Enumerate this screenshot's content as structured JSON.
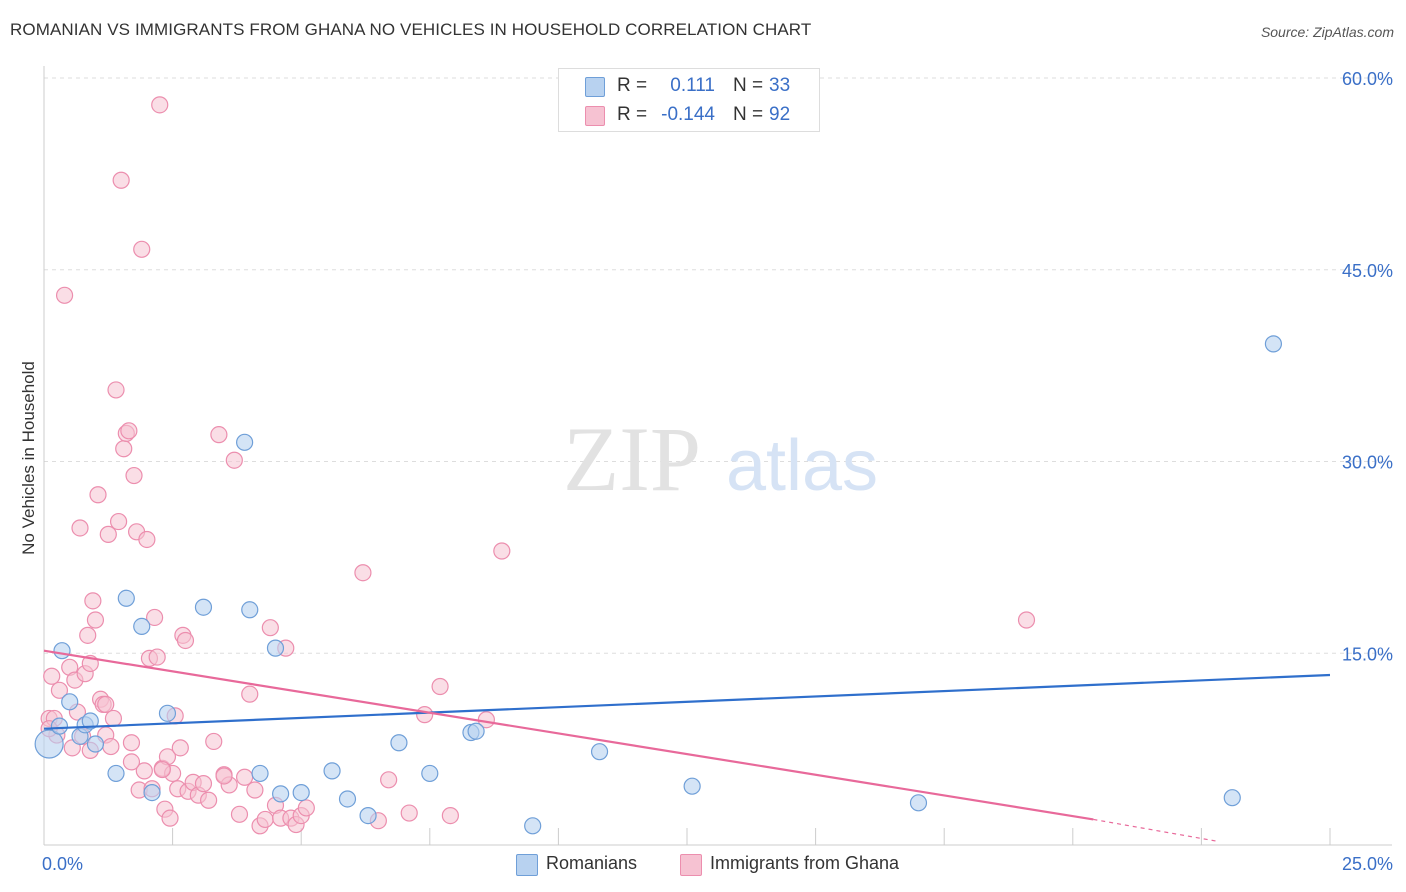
{
  "header": {
    "title": "ROMANIAN VS IMMIGRANTS FROM GHANA NO VEHICLES IN HOUSEHOLD CORRELATION CHART",
    "source": "Source: ZipAtlas.com"
  },
  "watermark": {
    "zip": "ZIP",
    "atlas": "atlas"
  },
  "colors": {
    "blue_fill": "#b8d2f0",
    "blue_stroke": "#6f9fd8",
    "blue_line": "#2f6fcc",
    "pink_fill": "#f6c2d2",
    "pink_stroke": "#ec8eae",
    "pink_line": "#e8699a",
    "axis_label": "#3a6fc7",
    "grid": "#dddddd"
  },
  "legend": {
    "rows": [
      {
        "r_label": "R =",
        "r_value": "0.111",
        "n_label": "N =",
        "n_value": "33"
      },
      {
        "r_label": "R =",
        "r_value": "-0.144",
        "n_label": "N =",
        "n_value": "92"
      }
    ]
  },
  "bottom_legend": {
    "series_a": "Romanians",
    "series_b": "Immigrants from Ghana"
  },
  "chart_data": {
    "type": "scatter",
    "title": "ROMANIAN VS IMMIGRANTS FROM GHANA NO VEHICLES IN HOUSEHOLD CORRELATION CHART",
    "xlabel": "",
    "ylabel": "No Vehicles in Household",
    "xlim": [
      0,
      25
    ],
    "ylim": [
      0,
      60
    ],
    "x_tick_labels": [
      {
        "value": 0,
        "label": "0.0%"
      },
      {
        "value": 25,
        "label": "25.0%"
      }
    ],
    "y_ticks": [
      {
        "value": 15,
        "label": "15.0%"
      },
      {
        "value": 30,
        "label": "30.0%"
      },
      {
        "value": 45,
        "label": "45.0%"
      },
      {
        "value": 60,
        "label": "60.0%"
      }
    ],
    "series": [
      {
        "name": "Romanians",
        "color": "blue",
        "trend": {
          "x0": 0,
          "y0": 9.1,
          "x1": 25,
          "y1": 13.3
        },
        "points": [
          [
            0.1,
            7.9
          ],
          [
            0.35,
            15.2
          ],
          [
            0.3,
            9.3
          ],
          [
            0.5,
            11.2
          ],
          [
            0.7,
            8.5
          ],
          [
            0.8,
            9.4
          ],
          [
            0.9,
            9.7
          ],
          [
            1.0,
            7.9
          ],
          [
            1.4,
            5.6
          ],
          [
            1.6,
            19.3
          ],
          [
            1.9,
            17.1
          ],
          [
            2.1,
            4.1
          ],
          [
            2.4,
            10.3
          ],
          [
            3.1,
            18.6
          ],
          [
            3.9,
            31.5
          ],
          [
            4.0,
            18.4
          ],
          [
            4.5,
            15.4
          ],
          [
            4.2,
            5.6
          ],
          [
            4.6,
            4.0
          ],
          [
            5.0,
            4.1
          ],
          [
            5.6,
            5.8
          ],
          [
            5.9,
            3.6
          ],
          [
            6.3,
            2.3
          ],
          [
            6.9,
            8.0
          ],
          [
            7.5,
            5.6
          ],
          [
            8.3,
            8.8
          ],
          [
            8.4,
            8.9
          ],
          [
            9.5,
            1.5
          ],
          [
            10.8,
            7.3
          ],
          [
            12.6,
            4.6
          ],
          [
            17.0,
            3.3
          ],
          [
            23.1,
            3.7
          ],
          [
            23.9,
            39.2
          ]
        ]
      },
      {
        "name": "Immigrants from Ghana",
        "color": "pink",
        "trend": {
          "x0": 0,
          "y0": 15.2,
          "x1": 20.4,
          "y1": 2.0,
          "dash_x1": 22.8,
          "dash_y1": 0.3
        },
        "points": [
          [
            0.1,
            9.9
          ],
          [
            0.15,
            13.2
          ],
          [
            0.2,
            9.9
          ],
          [
            0.25,
            8.6
          ],
          [
            0.3,
            12.1
          ],
          [
            0.4,
            43.0
          ],
          [
            0.5,
            13.9
          ],
          [
            0.55,
            7.6
          ],
          [
            0.6,
            12.9
          ],
          [
            0.65,
            10.4
          ],
          [
            0.7,
            24.8
          ],
          [
            0.75,
            8.5
          ],
          [
            0.8,
            13.4
          ],
          [
            0.85,
            16.4
          ],
          [
            0.9,
            14.2
          ],
          [
            0.95,
            19.1
          ],
          [
            1.0,
            17.6
          ],
          [
            1.05,
            27.4
          ],
          [
            1.1,
            11.4
          ],
          [
            1.15,
            11.0
          ],
          [
            1.2,
            8.6
          ],
          [
            1.25,
            24.3
          ],
          [
            1.3,
            7.7
          ],
          [
            1.35,
            9.9
          ],
          [
            1.4,
            35.6
          ],
          [
            1.45,
            25.3
          ],
          [
            1.5,
            52.0
          ],
          [
            1.55,
            31.0
          ],
          [
            1.6,
            32.2
          ],
          [
            1.65,
            32.4
          ],
          [
            1.7,
            8.0
          ],
          [
            1.75,
            28.9
          ],
          [
            1.8,
            24.5
          ],
          [
            1.85,
            4.3
          ],
          [
            1.9,
            46.6
          ],
          [
            1.95,
            5.8
          ],
          [
            2.0,
            23.9
          ],
          [
            2.05,
            14.6
          ],
          [
            2.1,
            4.4
          ],
          [
            2.15,
            17.8
          ],
          [
            2.2,
            14.7
          ],
          [
            2.25,
            57.9
          ],
          [
            2.3,
            6.0
          ],
          [
            2.35,
            2.8
          ],
          [
            2.4,
            6.9
          ],
          [
            2.45,
            2.1
          ],
          [
            2.5,
            5.6
          ],
          [
            2.55,
            10.1
          ],
          [
            2.6,
            4.4
          ],
          [
            2.65,
            7.6
          ],
          [
            2.7,
            16.4
          ],
          [
            2.75,
            16.0
          ],
          [
            2.8,
            4.2
          ],
          [
            2.9,
            4.9
          ],
          [
            3.0,
            3.9
          ],
          [
            3.1,
            4.8
          ],
          [
            3.2,
            3.5
          ],
          [
            3.3,
            8.1
          ],
          [
            3.4,
            32.1
          ],
          [
            3.5,
            5.5
          ],
          [
            3.6,
            4.7
          ],
          [
            3.7,
            30.1
          ],
          [
            3.8,
            2.4
          ],
          [
            3.9,
            5.3
          ],
          [
            4.0,
            11.8
          ],
          [
            4.1,
            4.3
          ],
          [
            4.2,
            1.5
          ],
          [
            4.3,
            2.0
          ],
          [
            4.4,
            17.0
          ],
          [
            4.5,
            3.1
          ],
          [
            4.6,
            2.1
          ],
          [
            4.7,
            15.4
          ],
          [
            4.8,
            2.1
          ],
          [
            4.9,
            1.6
          ],
          [
            5.0,
            2.3
          ],
          [
            5.1,
            2.9
          ],
          [
            6.2,
            21.3
          ],
          [
            6.5,
            1.9
          ],
          [
            6.7,
            5.1
          ],
          [
            7.1,
            2.5
          ],
          [
            7.4,
            10.2
          ],
          [
            7.7,
            12.4
          ],
          [
            7.9,
            2.3
          ],
          [
            8.6,
            9.8
          ],
          [
            8.9,
            23.0
          ],
          [
            19.1,
            17.6
          ],
          [
            0.1,
            9.1
          ],
          [
            0.9,
            7.4
          ],
          [
            1.2,
            11.0
          ],
          [
            1.7,
            6.5
          ],
          [
            2.3,
            5.9
          ],
          [
            3.5,
            5.4
          ]
        ]
      }
    ]
  }
}
